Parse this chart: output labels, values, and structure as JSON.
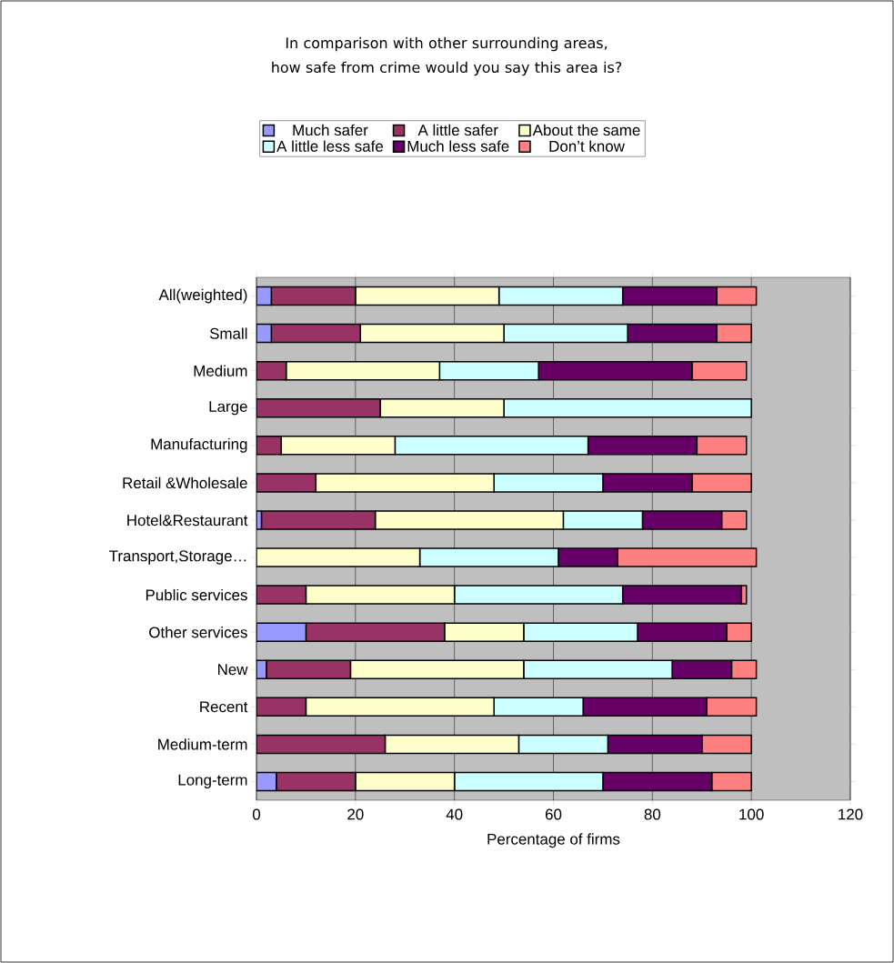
{
  "chart_data": {
    "type": "bar",
    "orientation": "horizontal",
    "stacked": true,
    "title": "In comparison with other surrounding areas, how safe from crime would you say this area is?",
    "xlabel": "Percentage of firms",
    "categories": [
      "All(weighted)",
      "Small",
      "Medium",
      "Large",
      "Manufacturing",
      "Retail &Wholesale",
      "Hotel&Restaurant",
      "Transport,Storage…",
      "Public services",
      "Other services",
      "New",
      "Recent",
      "Medium-term",
      "Long-term"
    ],
    "series": [
      {
        "name": "Much safer",
        "color": "#9999ff",
        "values": [
          3,
          3,
          0,
          0,
          0,
          0,
          1,
          0,
          0,
          10,
          2,
          0,
          0,
          4
        ]
      },
      {
        "name": "A little safer",
        "color": "#993366",
        "values": [
          17,
          18,
          6,
          25,
          5,
          12,
          23,
          0,
          10,
          28,
          17,
          10,
          26,
          16
        ]
      },
      {
        "name": "About the same",
        "color": "#ffffcc",
        "values": [
          29,
          29,
          31,
          25,
          23,
          36,
          38,
          33,
          30,
          16,
          35,
          38,
          27,
          20
        ]
      },
      {
        "name": "A little less safe",
        "color": "#ccffff",
        "values": [
          25,
          25,
          20,
          50,
          39,
          22,
          16,
          28,
          34,
          23,
          30,
          18,
          18,
          30
        ]
      },
      {
        "name": "Much less safe",
        "color": "#660066",
        "values": [
          19,
          18,
          31,
          0,
          22,
          18,
          16,
          12,
          24,
          18,
          12,
          25,
          19,
          22
        ]
      },
      {
        "name": "Don’t know",
        "color": "#ff8080",
        "values": [
          8,
          7,
          11,
          0,
          10,
          12,
          5,
          28,
          1,
          5,
          5,
          10,
          10,
          8
        ]
      }
    ],
    "xlim": [
      0,
      120
    ],
    "xticks": [
      0,
      20,
      40,
      60,
      80,
      100,
      120
    ],
    "grid": "x",
    "legend": "top"
  }
}
